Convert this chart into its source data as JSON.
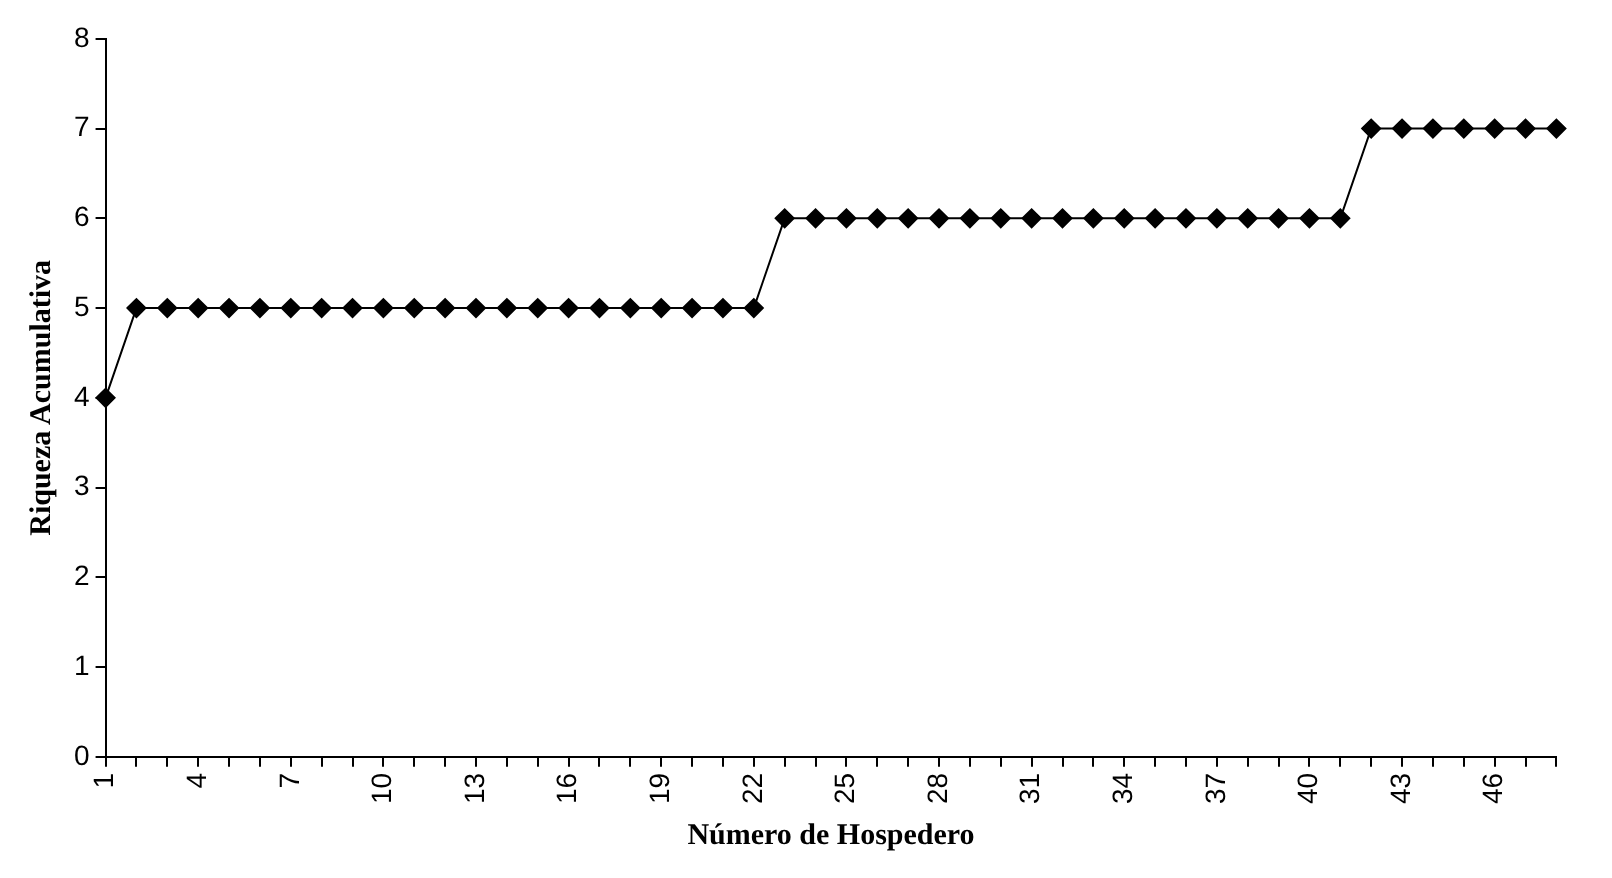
{
  "chart_data": {
    "type": "line",
    "xlabel": "Número de Hospedero",
    "ylabel": "Riqueza Acumulativa",
    "categories": [
      "1",
      null,
      null,
      "4",
      null,
      null,
      "7",
      null,
      null,
      "10",
      null,
      null,
      "13",
      null,
      null,
      "16",
      null,
      null,
      "19",
      null,
      null,
      "22",
      null,
      null,
      "25",
      null,
      null,
      "28",
      null,
      null,
      "31",
      null,
      null,
      "34",
      null,
      null,
      "37",
      null,
      null,
      "40",
      null,
      null,
      "43",
      null,
      null,
      "46",
      null,
      null
    ],
    "series": [
      {
        "color": "#000000",
        "values": [
          4,
          5,
          5,
          5,
          5,
          5,
          5,
          5,
          5,
          5,
          5,
          5,
          5,
          5,
          5,
          5,
          5,
          5,
          5,
          5,
          5,
          5,
          6,
          6,
          6,
          6,
          6,
          6,
          6,
          6,
          6,
          6,
          6,
          6,
          6,
          6,
          6,
          6,
          6,
          6,
          6,
          7,
          7,
          7,
          7,
          7,
          7,
          7
        ]
      }
    ],
    "ylim": [
      0,
      8
    ],
    "yticks": [
      0,
      1,
      2,
      3,
      4,
      5,
      6,
      7,
      8
    ],
    "grid": false,
    "legend": false,
    "marker": "diamond",
    "line_style": "solid"
  }
}
